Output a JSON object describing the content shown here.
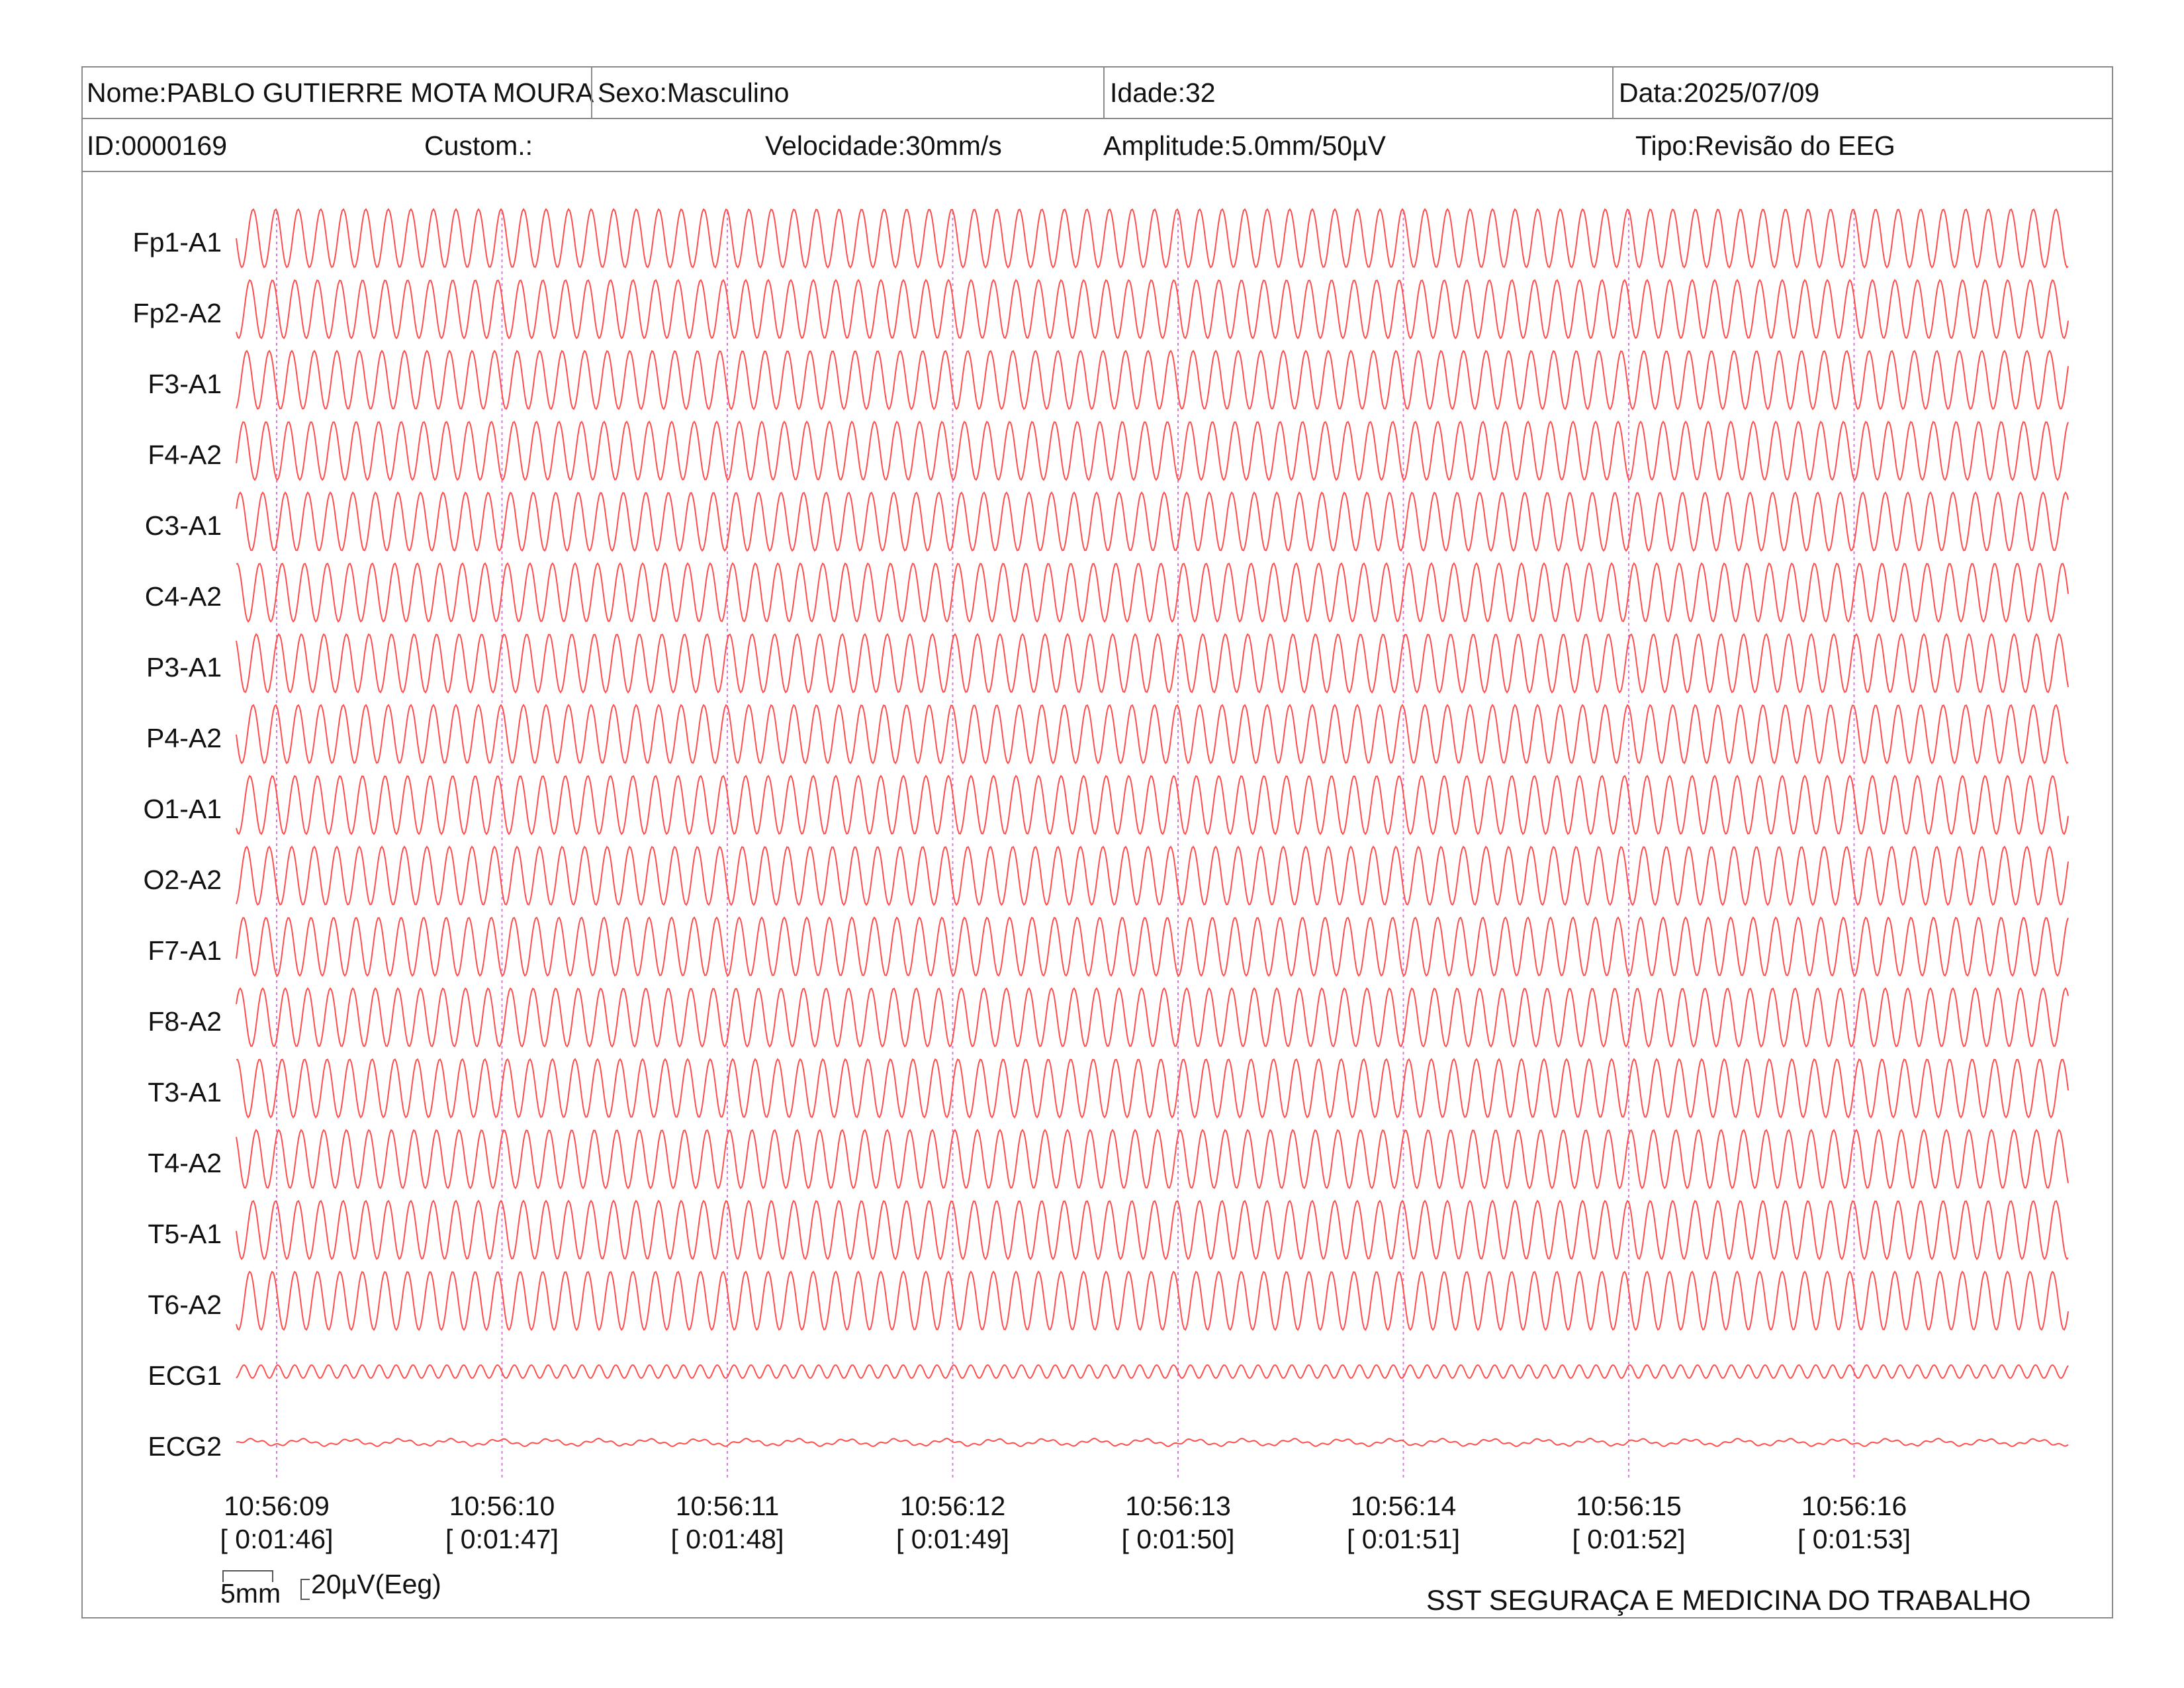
{
  "header": {
    "nome": "Nome:PABLO GUTIERRE MOTA MOURA",
    "sexo": "Sexo:Masculino",
    "idade": "Idade:32",
    "data": "Data:2025/07/09",
    "id": "ID:0000169",
    "custom": "Custom.:",
    "velocidade": "Velocidade:30mm/s",
    "amplitude": "Amplitude:5.0mm/50µV",
    "tipo": "Tipo:Revisão do EEG"
  },
  "chart_data": {
    "type": "line",
    "channels": [
      "Fp1-A1",
      "Fp2-A2",
      "F3-A1",
      "F4-A2",
      "C3-A1",
      "C4-A2",
      "P3-A1",
      "P4-A2",
      "O1-A1",
      "O2-A2",
      "F7-A1",
      "F8-A2",
      "T3-A1",
      "T4-A2",
      "T5-A1",
      "T6-A2",
      "ECG1",
      "ECG2"
    ],
    "time_marks": [
      {
        "clock": "10:56:09",
        "elapsed": "[ 0:01:46]"
      },
      {
        "clock": "10:56:10",
        "elapsed": "[ 0:01:47]"
      },
      {
        "clock": "10:56:11",
        "elapsed": "[ 0:01:48]"
      },
      {
        "clock": "10:56:12",
        "elapsed": "[ 0:01:49]"
      },
      {
        "clock": "10:56:13",
        "elapsed": "[ 0:01:50]"
      },
      {
        "clock": "10:56:14",
        "elapsed": "[ 0:01:51]"
      },
      {
        "clock": "10:56:15",
        "elapsed": "[ 0:01:52]"
      },
      {
        "clock": "10:56:16",
        "elapsed": "[ 0:01:53]"
      }
    ],
    "trace_color": "#ff4d4d",
    "marker_color": "#d77ae0",
    "cycles_per_second": 10
  },
  "scale": {
    "time_label": "5mm",
    "amp_label": "20µV(Eeg)"
  },
  "footer": {
    "org": "SST SEGURAÇA E MEDICINA DO TRABALHO"
  }
}
